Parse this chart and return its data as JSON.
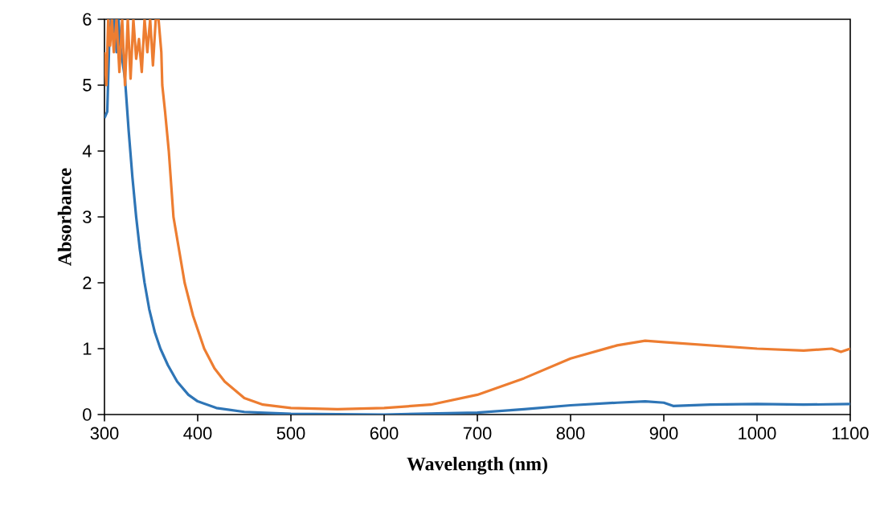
{
  "chart_data": {
    "type": "line",
    "xlabel": "Wavelength (nm)",
    "ylabel": "Absorbance",
    "xlim": [
      300,
      1100
    ],
    "ylim": [
      0,
      6
    ],
    "xticks": [
      300,
      400,
      500,
      600,
      700,
      800,
      900,
      1000,
      1100
    ],
    "yticks": [
      0,
      1,
      2,
      3,
      4,
      5,
      6
    ],
    "grid": false,
    "line_style": "solid",
    "marker": "none",
    "series": [
      {
        "color": "#2e75b6",
        "x": [
          300,
          303,
          305,
          307,
          309,
          311,
          313,
          315,
          317,
          319,
          322,
          326,
          330,
          334,
          338,
          343,
          348,
          354,
          360,
          368,
          378,
          390,
          400,
          420,
          450,
          500,
          600,
          700,
          750,
          800,
          850,
          880,
          900,
          910,
          950,
          1000,
          1050,
          1100
        ],
        "values": [
          4.5,
          4.6,
          5.6,
          6,
          5.8,
          6,
          5.5,
          6,
          5.6,
          5.4,
          5.1,
          4.3,
          3.6,
          3.0,
          2.5,
          2.0,
          1.6,
          1.25,
          1.0,
          0.75,
          0.5,
          0.3,
          0.2,
          0.1,
          0.04,
          0.01,
          0.0,
          0.03,
          0.08,
          0.14,
          0.18,
          0.2,
          0.18,
          0.13,
          0.15,
          0.16,
          0.15,
          0.16
        ]
      },
      {
        "color": "#ed7d31",
        "x": [
          300,
          302,
          304,
          306,
          308,
          310,
          313,
          316,
          319,
          322,
          325,
          328,
          331,
          334,
          337,
          340,
          343,
          346,
          349,
          352,
          355,
          358,
          361,
          362,
          365,
          369,
          374,
          380,
          386,
          395,
          407,
          418,
          429,
          450,
          470,
          500,
          550,
          600,
          650,
          700,
          750,
          800,
          850,
          880,
          900,
          950,
          1000,
          1050,
          1080,
          1090,
          1100
        ],
        "values": [
          5.5,
          5.0,
          6,
          5.6,
          6,
          5.5,
          6,
          5.2,
          6,
          5.0,
          6,
          5.1,
          6,
          5.4,
          5.7,
          5.2,
          6,
          5.5,
          6,
          5.3,
          6,
          6,
          5.5,
          5.0,
          4.6,
          4.0,
          3.0,
          2.5,
          2.0,
          1.5,
          1.0,
          0.7,
          0.5,
          0.25,
          0.15,
          0.1,
          0.08,
          0.1,
          0.15,
          0.3,
          0.55,
          0.85,
          1.05,
          1.12,
          1.1,
          1.05,
          1.0,
          0.97,
          1.0,
          0.95,
          1.0
        ]
      }
    ]
  }
}
